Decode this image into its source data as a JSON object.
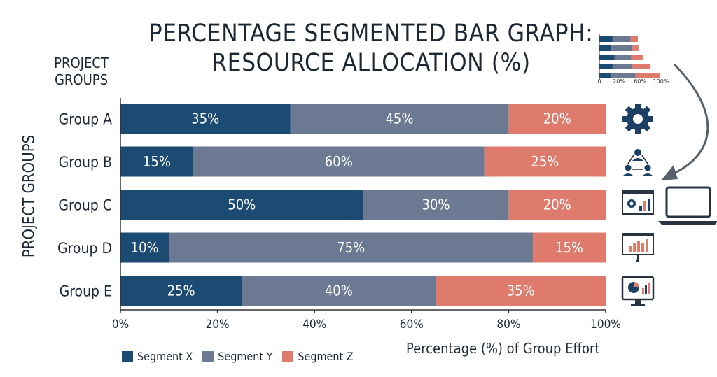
{
  "title_line1": "PERCENTAGE SEGMENTED BAR GRAPH:",
  "title_line2": "RESOURCE ALLOCATION (%)",
  "corner_label": "PROJECT GROUPS",
  "ylabel": "PROJECT GROUPS",
  "xlabel": "Percentage (%) of Group Effort",
  "colors": {
    "x": "#1b4a72",
    "y": "#6b7a92",
    "z": "#de7b6c"
  },
  "icons": [
    "gear-icon",
    "team-network-icon",
    "presentation-screen-icon",
    "laptop-icon",
    "bar-chart-board-icon",
    "monitor-dashboard-icon"
  ],
  "thumbnail": {
    "tick_labels": [
      "0",
      "20%",
      "60%",
      "100%"
    ]
  },
  "chart_data": {
    "type": "bar",
    "orientation": "horizontal",
    "stacked": true,
    "categories": [
      "Group A",
      "Group B",
      "Group C",
      "Group D",
      "Group E"
    ],
    "series": [
      {
        "name": "Segment X",
        "values": [
          35,
          15,
          50,
          10,
          25
        ]
      },
      {
        "name": "Segment Y",
        "values": [
          45,
          60,
          30,
          75,
          40
        ]
      },
      {
        "name": "Segment Z",
        "values": [
          20,
          25,
          20,
          15,
          35
        ]
      }
    ],
    "xlim": [
      0,
      100
    ],
    "xticks": [
      0,
      20,
      40,
      60,
      80,
      100
    ],
    "xtick_labels": [
      "0%",
      "20%",
      "40%",
      "60%",
      "80%",
      "100%"
    ],
    "legend": "bottom-left",
    "grid": false
  }
}
